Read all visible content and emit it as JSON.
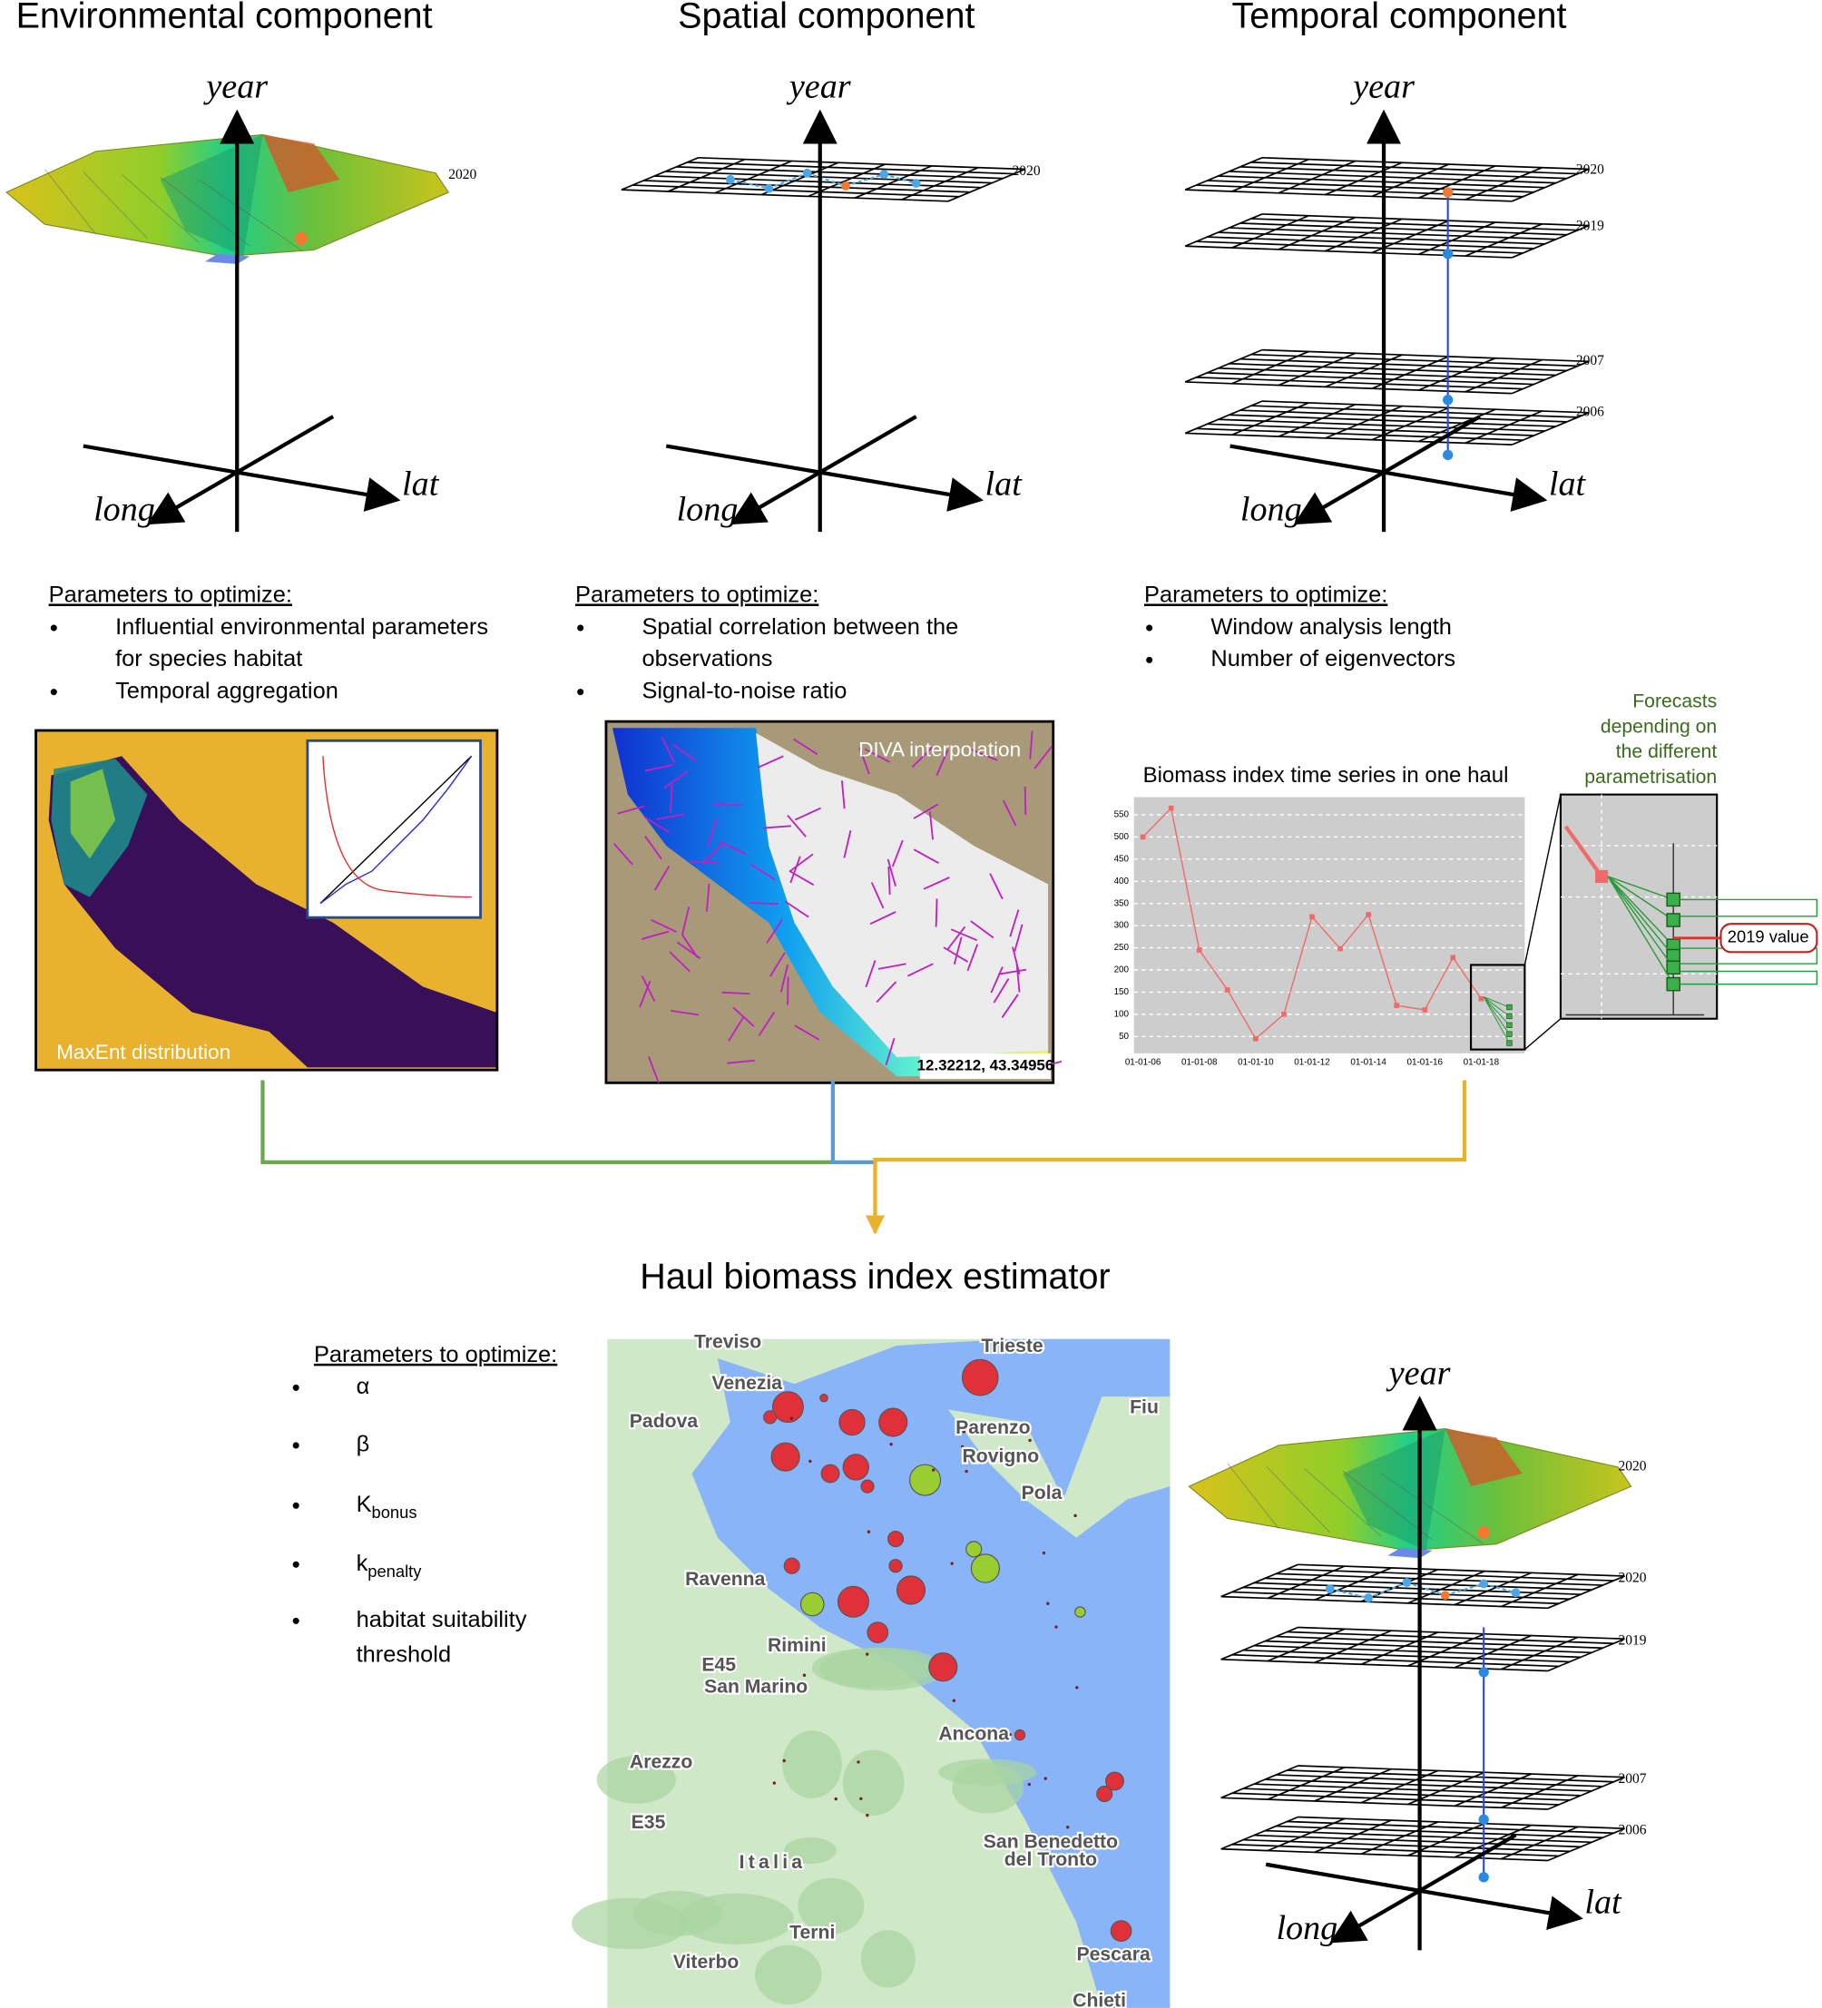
{
  "components": [
    {
      "title": "Environmental component",
      "axis": {
        "year": "year",
        "long": "long",
        "lat": "lat"
      },
      "years": [
        "2020"
      ],
      "parameters_title": "Parameters to optimize:",
      "parameters": [
        [
          "Influential environmental parameters",
          "for species habitat"
        ],
        [
          "Temporal aggregation"
        ]
      ]
    },
    {
      "title": "Spatial component",
      "axis": {
        "year": "year",
        "long": "long",
        "lat": "lat"
      },
      "years": [
        "2020"
      ],
      "parameters_title": "Parameters to optimize:",
      "parameters": [
        [
          "Spatial correlation between the",
          "observations"
        ],
        [
          "Signal-to-noise ratio"
        ]
      ]
    },
    {
      "title": "Temporal component",
      "axis": {
        "year": "year",
        "long": "long",
        "lat": "lat"
      },
      "years": [
        "2020",
        "2019",
        "2007",
        "2006"
      ],
      "parameters_title": "Parameters to optimize:",
      "parameters": [
        [
          "Window analysis length"
        ],
        [
          "Number of eigenvectors"
        ]
      ]
    }
  ],
  "panels": {
    "maxent_label": "MaxEnt distribution",
    "diva_label": "DIVA interpolation",
    "diva_coords": "12.32212, 43.34956"
  },
  "biomass_chart": {
    "title": "Biomass index time series in one haul",
    "categories": [
      "01-01-06",
      null,
      "01-01-08",
      null,
      "01-01-10",
      null,
      "01-01-12",
      null,
      "01-01-14",
      null,
      "01-01-16",
      null,
      "01-01-18"
    ],
    "values": [
      500,
      565,
      245,
      155,
      45,
      100,
      320,
      248,
      325,
      120,
      110,
      228,
      135
    ],
    "ylim": [
      12,
      590
    ],
    "yticks": [
      50,
      100,
      150,
      200,
      250,
      300,
      350,
      400,
      450,
      500,
      550
    ],
    "forecast_note": [
      "Forecasts",
      "depending on",
      "the different",
      "parametrisation"
    ],
    "forecast_value_label": "2019 value"
  },
  "estimator": {
    "title": "Haul biomass index estimator",
    "parameters_title": "Parameters to optimize:",
    "parameters": [
      {
        "text": "α"
      },
      {
        "text": "β"
      },
      {
        "text": "K",
        "sub": "bonus"
      },
      {
        "text": "k",
        "sub": "penalty"
      },
      {
        "text": "habitat suitability",
        "text2": "threshold"
      }
    ],
    "axis": {
      "year": "year",
      "long": "long",
      "lat": "lat"
    },
    "years": [
      "2020",
      "2020",
      "2019",
      "2007",
      "2006"
    ]
  },
  "map": {
    "labels": [
      "Treviso",
      "Trieste",
      "Venezia",
      "Padova",
      "Parenzo",
      "Rovigno",
      "Fiu",
      "Pola",
      "Ravenna",
      "Rimini",
      "E45",
      "San Marino",
      "Ancona",
      "Arezzo",
      "E35",
      "Italia",
      "San Benedetto",
      "del Tronto",
      "Terni",
      "Viterbo",
      "Pescara",
      "Chieti"
    ]
  }
}
